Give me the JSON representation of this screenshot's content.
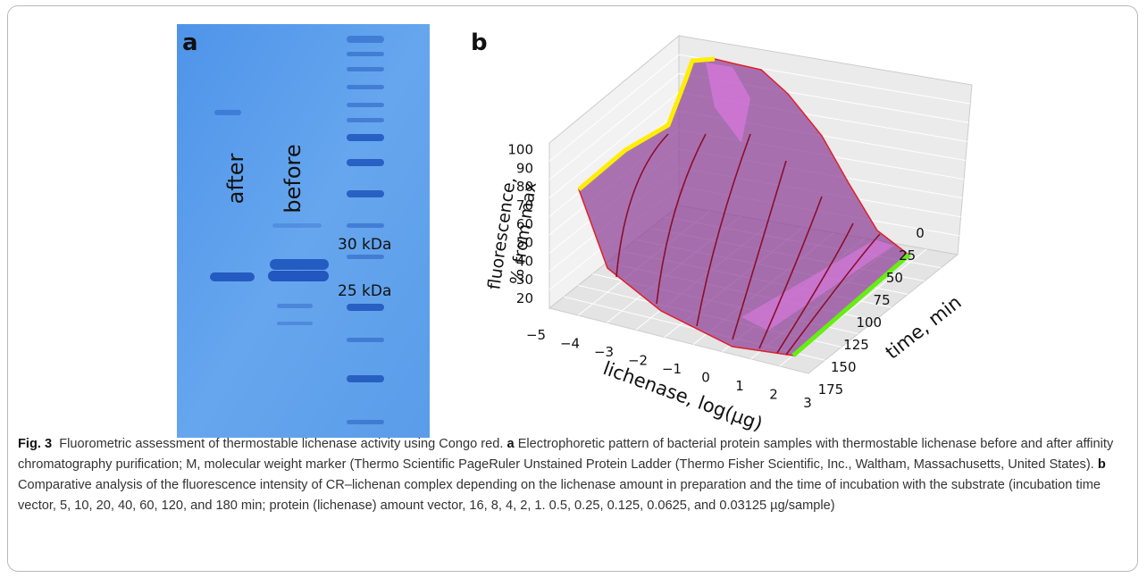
{
  "panel_a": {
    "label": "a",
    "lane_labels": [
      "after",
      "before"
    ],
    "marker_labels": [
      "30 kDa",
      "25 kDa"
    ]
  },
  "panel_b": {
    "label": "b",
    "z_axis_label": [
      "fluorescence,",
      "% from max"
    ],
    "z_ticks": [
      20,
      30,
      40,
      50,
      60,
      70,
      80,
      90,
      100
    ],
    "x_axis_label": "lichenase, log(µg)",
    "x_ticks": [
      "−5",
      "−4",
      "−3",
      "−2",
      "−1",
      "0",
      "1",
      "2",
      "3"
    ],
    "y_axis_label": "time, min",
    "y_ticks": [
      0,
      25,
      50,
      75,
      100,
      125,
      150,
      175
    ]
  },
  "caption": {
    "figure_label": "Fig. 3",
    "title": "Fluorometric assessment of thermostable lichenase activity using Congo red.",
    "a_label": "a",
    "a_text": "Electrophoretic pattern of bacterial protein samples with thermostable lichenase before and after affinity chromatography purification; M, molecular weight marker (Thermo Scientific PageRuler Unstained Protein Ladder (Thermo Fisher Scientific, Inc., Waltham, Massachusetts, United States).",
    "b_label": "b",
    "b_text": "Comparative analysis of the fluorescence intensity of CR–lichenan complex depending on the lichenase amount in preparation and the time of incubation with the substrate (incubation time vector, 5, 10, 20, 40, 60, 120, and 180 min; protein (lichenase) amount vector, 16, 8, 4, 2, 1. 0.5, 0.25, 0.125, 0.0625, and 0.03125 µg/sample)"
  }
}
